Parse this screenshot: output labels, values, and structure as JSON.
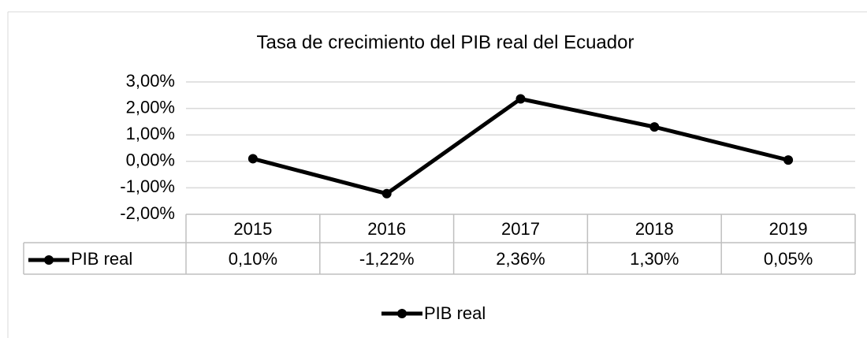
{
  "chart_data": {
    "type": "line",
    "title": "Tasa de crecimiento del PIB real del Ecuador",
    "categories": [
      "2015",
      "2016",
      "2017",
      "2018",
      "2019"
    ],
    "series": [
      {
        "name": "PIB real",
        "color": "#000000",
        "values": [
          0.1,
          -1.22,
          2.36,
          1.3,
          0.05
        ],
        "value_labels": [
          "0,10%",
          "-1,22%",
          "2,36%",
          "1,30%",
          "0,05%"
        ]
      }
    ],
    "ylim": [
      -2,
      3
    ],
    "yticks": [
      {
        "value": -2,
        "label": "-2,00%"
      },
      {
        "value": -1,
        "label": "-1,00%"
      },
      {
        "value": 0,
        "label": "0,00%"
      },
      {
        "value": 1,
        "label": "1,00%"
      },
      {
        "value": 2,
        "label": "2,00%"
      },
      {
        "value": 3,
        "label": "3,00%"
      }
    ],
    "grid": true,
    "legend": "bottom",
    "data_table": true
  }
}
